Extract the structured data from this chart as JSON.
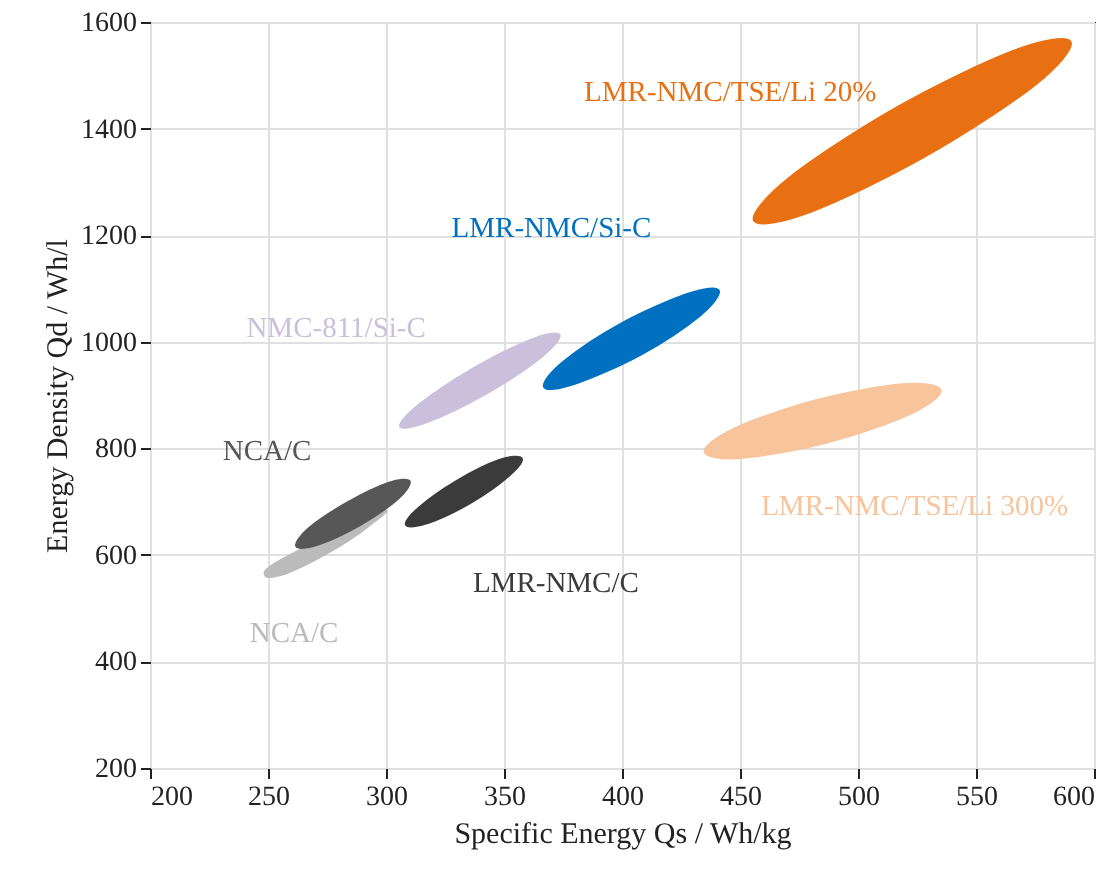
{
  "chart_data": {
    "type": "area",
    "xlabel": "Specific Energy Qs / Wh/kg",
    "ylabel": "Energy Density Qd / Wh/l",
    "xlim": [
      200,
      600
    ],
    "ylim": [
      200,
      1600
    ],
    "xticks": [
      200,
      250,
      300,
      350,
      400,
      450,
      500,
      550,
      600
    ],
    "yticks": [
      200,
      400,
      600,
      800,
      1000,
      1200,
      1400,
      1600
    ],
    "grid": true,
    "series": [
      {
        "name": "NCA/C",
        "color": "#bbbbbb",
        "x": [
          298,
          292,
          275.5,
          258,
          249,
          255
        ],
        "values": [
          681,
          652,
          604,
          566,
          560,
          589
        ]
      },
      {
        "name": "NCA/C",
        "color": "#575757",
        "x": [
          310,
          305,
          289,
          271,
          262,
          267,
          283.5,
          301
        ],
        "values": [
          738,
          705,
          656,
          619,
          616,
          649,
          698,
          735
        ]
      },
      {
        "name": "LMR-NMC/C",
        "color": "#3b3b3b",
        "x": [
          357.5,
          352,
          336,
          318,
          308.5,
          314,
          330,
          348
        ],
        "values": [
          781,
          748,
          698,
          660,
          656,
          689,
          739,
          778
        ]
      },
      {
        "name": "NMC-811/Si-C",
        "color": "#cbc0dc",
        "x": [
          373.5,
          366,
          343,
          318,
          306,
          314,
          337,
          361.5
        ],
        "values": [
          1013,
          972,
          904,
          850,
          841,
          882,
          950,
          1004
        ]
      },
      {
        "name": "LMR-NMC/Si-C",
        "color": "#0070c0",
        "x": [
          441,
          433,
          408,
          380,
          367,
          375,
          400,
          428
        ],
        "values": [
          1096,
          1049,
          976,
          921,
          915,
          962,
          1035,
          1090
        ]
      },
      {
        "name": "LMR-NMC/TSE/Li 300%",
        "color": "#f8c49b",
        "x": [
          535,
          522,
          487,
          451,
          435,
          448,
          483,
          519
        ],
        "values": [
          909,
          864,
          811,
          782,
          793,
          838,
          891,
          920
        ]
      },
      {
        "name": "LMR-NMC/TSE/Li 20%",
        "color": "#e97012",
        "x": [
          590,
          575,
          529,
          480,
          456,
          471,
          517,
          566
        ],
        "values": [
          1563,
          1482,
          1349,
          1244,
          1227,
          1308,
          1441,
          1546
        ]
      }
    ]
  }
}
